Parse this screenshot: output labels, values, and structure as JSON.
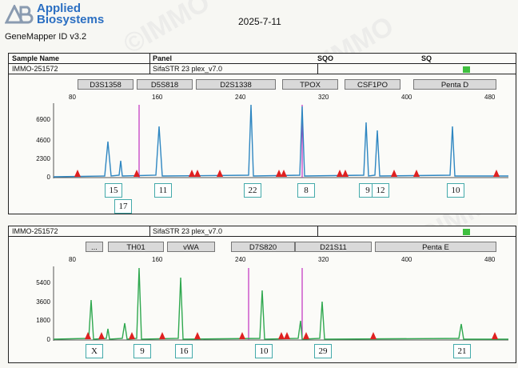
{
  "header": {
    "brand_line1": "Applied",
    "brand_line2": "Biosystems",
    "app_name": "GeneMapper ID v3.2",
    "date": "2025-7-11"
  },
  "watermark": "IMMO",
  "table_header": {
    "sample_name": "Sample Name",
    "panel": "Panel",
    "sqo": "SQO",
    "sq": "SQ"
  },
  "colors": {
    "blue": "#2e86c1",
    "green": "#2fa84f",
    "red": "#e02020",
    "magenta": "#c030c0",
    "quality_ok": "#3fbf3f"
  },
  "panels": [
    {
      "sample": "IMMO-251572",
      "panel": "SifaSTR 23 plex_v7.0",
      "dye_color": "#2e86c1",
      "x_ticks": [
        "80",
        "160",
        "240",
        "320",
        "400",
        "480"
      ],
      "y_ticks": [
        "6900",
        "4600",
        "2300",
        "0"
      ],
      "markers": [
        "D3S1358",
        "D5S818",
        "D2S1338",
        "TPOX",
        "CSF1PO",
        "Penta D"
      ],
      "alleles": [
        "15",
        "17",
        "11",
        "22",
        "8",
        "9",
        "12",
        "10"
      ]
    },
    {
      "sample": "IMMO-251572",
      "panel": "SifaSTR 23 plex_v7.0",
      "dye_color": "#2fa84f",
      "x_ticks": [
        "80",
        "160",
        "240",
        "320",
        "400",
        "480"
      ],
      "y_ticks": [
        "5400",
        "3600",
        "1800",
        "0"
      ],
      "markers": [
        "...",
        "TH01",
        "vWA",
        "D7S820",
        "D21S11",
        "Penta E"
      ],
      "alleles": [
        "X",
        "9",
        "16",
        "10",
        "29",
        "21"
      ]
    }
  ]
}
